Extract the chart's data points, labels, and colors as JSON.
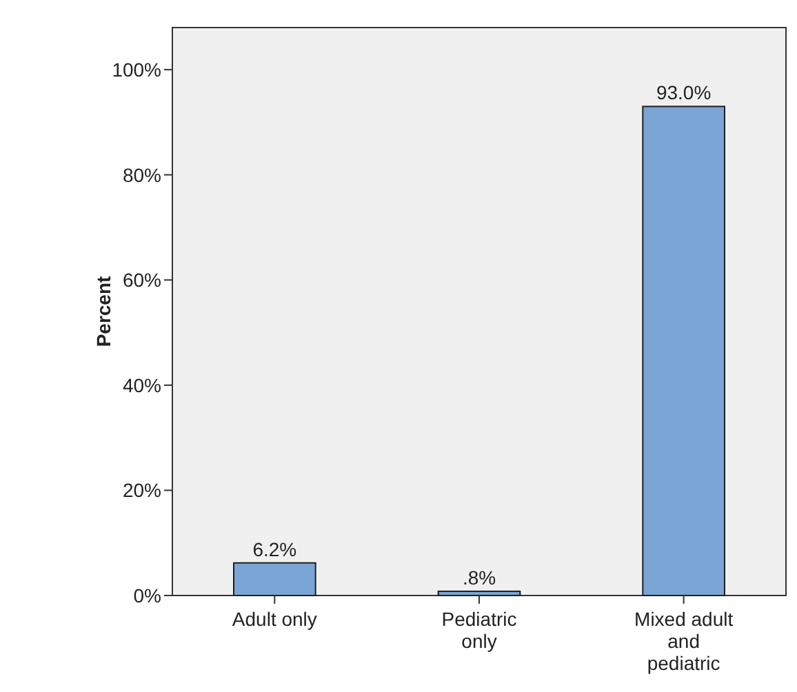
{
  "chart_data": {
    "type": "bar",
    "ylabel": "Percent",
    "categories": [
      "Adult only",
      "Pediatric only",
      "Mixed adult and pediatric"
    ],
    "values": [
      6.2,
      0.8,
      93.0
    ],
    "color": "#7aa6d6",
    "value_labels": [
      "6.2%",
      ".8%",
      "93.0%"
    ],
    "ylim": [
      0,
      108
    ],
    "yticks": [
      {
        "value": 0,
        "label": "0%"
      },
      {
        "value": 20,
        "label": "20%"
      },
      {
        "value": 40,
        "label": "40%"
      },
      {
        "value": 60,
        "label": "60%"
      },
      {
        "value": 80,
        "label": "80%"
      },
      {
        "value": 100,
        "label": "100%"
      }
    ],
    "grid": false
  }
}
